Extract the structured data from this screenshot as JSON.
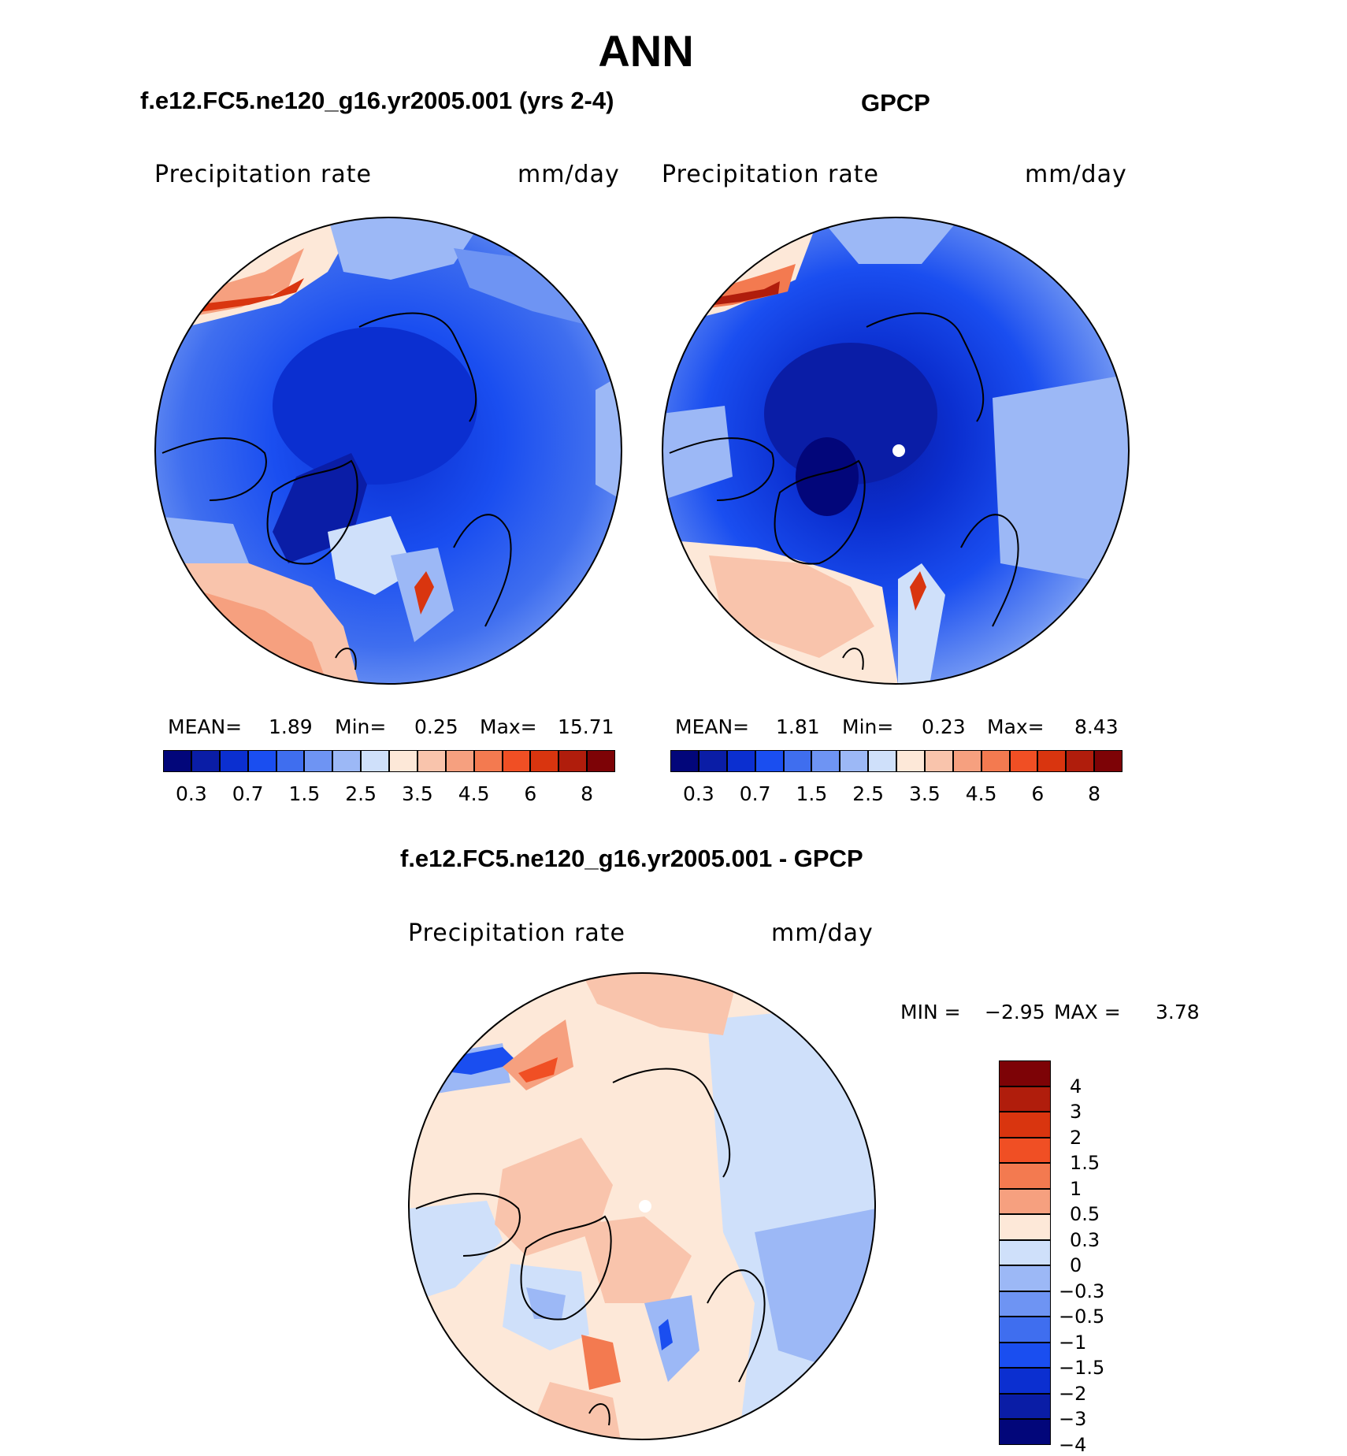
{
  "figure": {
    "title": "ANN",
    "variable_label": "Precipitation  rate",
    "units_label": "mm/day"
  },
  "panels": [
    {
      "title": "f.e12.FC5.ne120_g16.yr2005.001 (yrs 2-4)",
      "mean_label": "MEAN=",
      "mean": "1.89",
      "min_label": "Min=",
      "min": "0.25",
      "max_label": "Max=",
      "max": "15.71"
    },
    {
      "title": "GPCP",
      "mean_label": "MEAN=",
      "mean": "1.81",
      "min_label": "Min=",
      "min": "0.23",
      "max_label": "Max=",
      "max": "8.43"
    }
  ],
  "diff_panel": {
    "title": "f.e12.FC5.ne120_g16.yr2005.001 - GPCP",
    "min_label": "MIN =",
    "min": "−2.95",
    "max_label": "MAX =",
    "max": "3.78"
  },
  "colorbar_abs": {
    "colors": [
      "#02067a",
      "#0a1da6",
      "#0b2fd0",
      "#1a4ef0",
      "#3f6eef",
      "#6e94f3",
      "#9cb8f6",
      "#cfe0fa",
      "#fde8d8",
      "#f9c4ac",
      "#f6a07f",
      "#f37a50",
      "#f04f24",
      "#d9350f",
      "#b01d0c",
      "#7d0306"
    ],
    "ticks": [
      "0.3",
      "0.7",
      "1.5",
      "2.5",
      "3.5",
      "4.5",
      "6",
      "8"
    ]
  },
  "colorbar_diff": {
    "colors": [
      "#7d0306",
      "#b01d0c",
      "#d9350f",
      "#f04f24",
      "#f37a50",
      "#f6a07f",
      "#fde8d8",
      "#cfe0fa",
      "#9cb8f6",
      "#6e94f3",
      "#3f6eef",
      "#1a4ef0",
      "#0b2fd0",
      "#0a1da6",
      "#02067a"
    ],
    "ticks": [
      "4",
      "3",
      "2",
      "1.5",
      "1",
      "0.5",
      "0.3",
      "0",
      "−0.3",
      "−0.5",
      "−1",
      "−1.5",
      "−2",
      "−3",
      "−4"
    ]
  }
}
